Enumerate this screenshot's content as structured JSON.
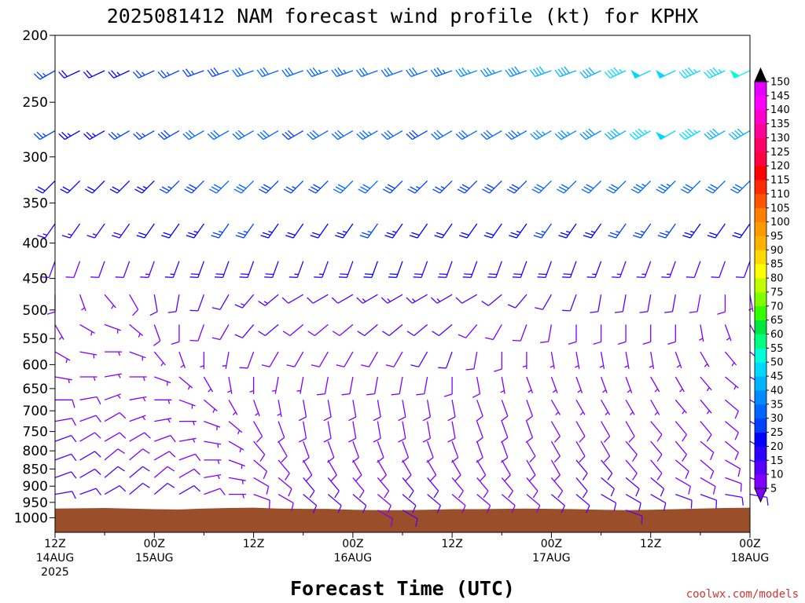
{
  "title": "2025081412 NAM forecast wind profile (kt) for KPHX",
  "credit": "coolwx.com/models",
  "colors": {
    "ground": "#9a4f2a",
    "scale": [
      "#8000ff",
      "#5500ff",
      "#2a00ff",
      "#0000ff",
      "#0040ff",
      "#0066ff",
      "#008cff",
      "#00b3ff",
      "#00d9ff",
      "#00ffd9",
      "#00ff80",
      "#00e640",
      "#33ff00",
      "#80ff00",
      "#c0ff00",
      "#ffff00",
      "#ffd900",
      "#ffb300",
      "#ff9900",
      "#ff7f00",
      "#ff5500",
      "#ff2a00",
      "#ff0000",
      "#ff0040",
      "#ff0066",
      "#ff0099",
      "#ff00cc",
      "#ff00ff",
      "#e600ff"
    ]
  },
  "chart_data": {
    "type": "wind_barb_time_height",
    "title": "2025081412 NAM forecast wind profile (kt) for KPHX",
    "xlabel": "Forecast Time (UTC)",
    "ylabel": "",
    "x_range_hours": [
      0,
      84
    ],
    "time_step_hours": 3,
    "y_axis": "pressure (log scale)",
    "ylim": [
      1050,
      200
    ],
    "y_ticks": [
      "200",
      "250",
      "300",
      "350",
      "400",
      "450",
      "500",
      "550",
      "600",
      "650",
      "700",
      "750",
      "800",
      "850",
      "900",
      "950",
      "1000"
    ],
    "x_ticks": [
      {
        "hour": 0,
        "lines": [
          "12Z",
          "14AUG",
          "2025"
        ]
      },
      {
        "hour": 12,
        "lines": [
          "00Z",
          "15AUG"
        ]
      },
      {
        "hour": 24,
        "lines": [
          "12Z"
        ]
      },
      {
        "hour": 36,
        "lines": [
          "00Z",
          "16AUG"
        ]
      },
      {
        "hour": 48,
        "lines": [
          "12Z"
        ]
      },
      {
        "hour": 60,
        "lines": [
          "00Z",
          "17AUG"
        ]
      },
      {
        "hour": 72,
        "lines": [
          "12Z"
        ]
      },
      {
        "hour": 84,
        "lines": [
          "00Z",
          "18AUG"
        ]
      }
    ],
    "colorbar": {
      "label_values": [
        5,
        10,
        15,
        20,
        25,
        30,
        35,
        40,
        45,
        50,
        55,
        60,
        65,
        70,
        75,
        80,
        85,
        90,
        95,
        100,
        105,
        110,
        115,
        120,
        125,
        130,
        135,
        140,
        145,
        150
      ]
    },
    "surface_pressure_hpa": [
      970,
      969,
      968,
      970,
      972,
      973,
      970,
      968,
      967,
      970,
      971,
      971,
      974,
      975,
      975,
      974,
      972,
      972,
      971,
      970,
      971,
      972,
      974,
      975,
      974,
      972,
      970,
      968,
      967
    ],
    "levels_hpa": [
      225,
      275,
      325,
      375,
      425,
      475,
      525,
      575,
      625,
      675,
      725,
      775,
      825,
      875,
      925,
      975
    ],
    "wind_speed_kt": {
      "225": [
        25,
        22,
        22,
        24,
        25,
        26,
        27,
        28,
        30,
        30,
        32,
        34,
        33,
        31,
        30,
        32,
        34,
        35,
        36,
        38,
        40,
        40,
        42,
        45,
        48,
        48,
        46,
        45,
        50
      ],
      "275": [
        25,
        24,
        24,
        25,
        26,
        28,
        30,
        30,
        32,
        30,
        28,
        30,
        32,
        33,
        30,
        28,
        30,
        32,
        32,
        33,
        35,
        35,
        38,
        42,
        46,
        48,
        45,
        42,
        40
      ],
      "325": [
        20,
        20,
        20,
        22,
        24,
        26,
        28,
        30,
        30,
        28,
        26,
        28,
        30,
        30,
        28,
        26,
        26,
        28,
        28,
        28,
        30,
        32,
        30,
        32,
        34,
        34,
        32,
        30,
        30
      ],
      "375": [
        15,
        15,
        16,
        18,
        20,
        22,
        24,
        25,
        25,
        24,
        22,
        22,
        24,
        25,
        24,
        22,
        22,
        22,
        22,
        24,
        25,
        24,
        24,
        25,
        26,
        26,
        24,
        22,
        20
      ],
      "425": [
        10,
        8,
        10,
        12,
        14,
        16,
        18,
        18,
        18,
        18,
        16,
        16,
        18,
        20,
        20,
        18,
        18,
        18,
        18,
        18,
        18,
        18,
        16,
        14,
        14,
        14,
        12,
        12,
        10
      ],
      "475": [
        8,
        6,
        6,
        8,
        10,
        12,
        12,
        12,
        14,
        14,
        12,
        12,
        12,
        14,
        14,
        14,
        14,
        12,
        12,
        12,
        12,
        12,
        12,
        10,
        10,
        10,
        8,
        8,
        6
      ],
      "525": [
        6,
        5,
        5,
        6,
        8,
        8,
        8,
        8,
        10,
        10,
        8,
        8,
        8,
        10,
        10,
        10,
        10,
        8,
        8,
        8,
        8,
        8,
        8,
        8,
        8,
        8,
        6,
        6,
        5
      ],
      "575": [
        6,
        6,
        5,
        5,
        6,
        6,
        6,
        6,
        8,
        8,
        8,
        8,
        8,
        8,
        8,
        10,
        10,
        8,
        8,
        6,
        6,
        6,
        6,
        6,
        6,
        6,
        6,
        5,
        5
      ],
      "625": [
        6,
        6,
        6,
        5,
        5,
        6,
        6,
        6,
        6,
        6,
        6,
        8,
        8,
        8,
        8,
        8,
        8,
        8,
        6,
        6,
        6,
        6,
        6,
        6,
        6,
        6,
        6,
        6,
        6
      ],
      "675": [
        8,
        8,
        6,
        6,
        6,
        6,
        6,
        6,
        6,
        6,
        8,
        8,
        8,
        8,
        8,
        8,
        8,
        8,
        8,
        8,
        6,
        6,
        6,
        6,
        6,
        6,
        6,
        8,
        8
      ],
      "725": [
        8,
        8,
        8,
        6,
        6,
        6,
        6,
        6,
        8,
        8,
        8,
        8,
        8,
        8,
        8,
        8,
        8,
        8,
        8,
        8,
        8,
        8,
        8,
        8,
        8,
        8,
        8,
        8,
        10
      ],
      "775": [
        10,
        8,
        8,
        8,
        8,
        6,
        6,
        6,
        8,
        8,
        8,
        8,
        8,
        8,
        8,
        8,
        8,
        8,
        8,
        8,
        8,
        8,
        8,
        8,
        8,
        8,
        8,
        8,
        10
      ],
      "825": [
        10,
        10,
        8,
        8,
        8,
        8,
        6,
        6,
        8,
        8,
        8,
        8,
        8,
        8,
        8,
        8,
        8,
        8,
        8,
        8,
        8,
        10,
        10,
        8,
        8,
        8,
        8,
        8,
        10
      ],
      "875": [
        10,
        10,
        10,
        10,
        8,
        8,
        6,
        6,
        8,
        8,
        10,
        10,
        8,
        8,
        10,
        10,
        8,
        8,
        8,
        8,
        8,
        10,
        10,
        10,
        10,
        8,
        8,
        8,
        10
      ],
      "925": [
        10,
        10,
        10,
        10,
        12,
        12,
        8,
        6,
        8,
        8,
        10,
        12,
        10,
        8,
        10,
        12,
        8,
        8,
        8,
        8,
        10,
        12,
        12,
        10,
        10,
        10,
        10,
        10,
        12
      ],
      "975": [
        8,
        8,
        10,
        10,
        12,
        14,
        8,
        6,
        8,
        8,
        10,
        12,
        10,
        8,
        10,
        12,
        8,
        8,
        8,
        8,
        10,
        12,
        14,
        12,
        10,
        10,
        10,
        10,
        12
      ]
    },
    "wind_direction_deg": {
      "225": [
        240,
        245,
        245,
        245,
        245,
        245,
        250,
        250,
        250,
        250,
        250,
        250,
        250,
        250,
        250,
        250,
        250,
        250,
        250,
        250,
        250,
        250,
        245,
        245,
        245,
        245,
        245,
        245,
        245
      ],
      "275": [
        240,
        240,
        240,
        240,
        240,
        240,
        240,
        240,
        240,
        240,
        240,
        240,
        240,
        240,
        240,
        240,
        240,
        240,
        240,
        240,
        240,
        240,
        240,
        240,
        240,
        240,
        240,
        240,
        240
      ],
      "325": [
        225,
        225,
        225,
        225,
        225,
        225,
        225,
        225,
        225,
        225,
        225,
        225,
        225,
        225,
        225,
        225,
        225,
        225,
        225,
        225,
        225,
        225,
        225,
        225,
        225,
        225,
        225,
        225,
        225
      ],
      "375": [
        215,
        215,
        215,
        215,
        215,
        215,
        215,
        215,
        215,
        215,
        215,
        215,
        215,
        215,
        215,
        215,
        215,
        215,
        215,
        215,
        215,
        215,
        215,
        215,
        215,
        215,
        215,
        215,
        215
      ],
      "425": [
        200,
        200,
        200,
        200,
        200,
        200,
        200,
        200,
        200,
        200,
        200,
        200,
        200,
        200,
        200,
        200,
        200,
        200,
        200,
        200,
        200,
        200,
        200,
        200,
        200,
        200,
        200,
        200,
        200
      ],
      "475": [
        180,
        160,
        140,
        150,
        170,
        190,
        200,
        210,
        220,
        230,
        240,
        240,
        240,
        240,
        240,
        240,
        240,
        240,
        230,
        220,
        210,
        200,
        190,
        190,
        190,
        190,
        190,
        180,
        170
      ],
      "525": [
        150,
        120,
        110,
        130,
        160,
        180,
        200,
        210,
        220,
        230,
        230,
        230,
        230,
        230,
        230,
        230,
        230,
        220,
        210,
        200,
        190,
        180,
        180,
        180,
        180,
        180,
        170,
        160,
        150
      ],
      "575": [
        120,
        100,
        90,
        110,
        140,
        160,
        180,
        190,
        200,
        210,
        210,
        210,
        210,
        210,
        210,
        210,
        200,
        190,
        180,
        180,
        170,
        170,
        170,
        170,
        170,
        160,
        150,
        140,
        130
      ],
      "625": [
        100,
        90,
        80,
        90,
        110,
        130,
        150,
        170,
        180,
        190,
        190,
        190,
        190,
        190,
        190,
        190,
        180,
        170,
        170,
        160,
        160,
        160,
        160,
        160,
        150,
        150,
        140,
        130,
        120
      ],
      "675": [
        90,
        80,
        70,
        80,
        90,
        110,
        130,
        150,
        160,
        170,
        170,
        170,
        170,
        170,
        170,
        170,
        170,
        160,
        160,
        160,
        150,
        150,
        150,
        150,
        150,
        140,
        140,
        130,
        120
      ],
      "725": [
        80,
        70,
        60,
        70,
        80,
        90,
        110,
        130,
        150,
        160,
        170,
        170,
        170,
        170,
        170,
        170,
        170,
        160,
        160,
        160,
        150,
        150,
        150,
        150,
        140,
        140,
        140,
        130,
        120
      ],
      "775": [
        70,
        60,
        60,
        60,
        70,
        80,
        100,
        120,
        140,
        150,
        160,
        160,
        160,
        160,
        160,
        160,
        160,
        160,
        160,
        150,
        150,
        150,
        150,
        140,
        140,
        140,
        130,
        130,
        120
      ],
      "825": [
        70,
        60,
        50,
        50,
        60,
        70,
        90,
        110,
        130,
        140,
        150,
        150,
        150,
        150,
        150,
        150,
        150,
        150,
        150,
        150,
        150,
        140,
        140,
        140,
        140,
        130,
        130,
        120,
        110
      ],
      "875": [
        70,
        60,
        50,
        50,
        50,
        60,
        80,
        100,
        120,
        130,
        140,
        140,
        140,
        140,
        140,
        140,
        140,
        140,
        140,
        140,
        140,
        140,
        130,
        130,
        130,
        120,
        120,
        110,
        110
      ],
      "925": [
        80,
        70,
        60,
        50,
        50,
        60,
        70,
        90,
        110,
        120,
        130,
        130,
        130,
        130,
        130,
        130,
        130,
        130,
        130,
        130,
        130,
        130,
        120,
        120,
        120,
        110,
        110,
        100,
        100
      ],
      "975": [
        90,
        80,
        70,
        60,
        60,
        60,
        70,
        80,
        100,
        110,
        120,
        120,
        120,
        120,
        120,
        120,
        120,
        120,
        120,
        120,
        120,
        120,
        110,
        110,
        110,
        100,
        100,
        90,
        90
      ]
    }
  }
}
